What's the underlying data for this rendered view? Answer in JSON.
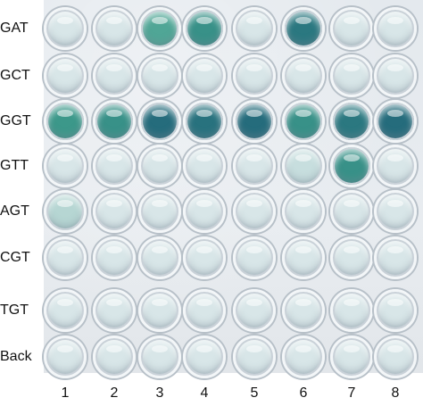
{
  "rows": [
    {
      "label": "GAT",
      "wells": [
        0.05,
        0.05,
        0.45,
        0.6,
        0.05,
        0.8,
        0.05,
        0.05
      ]
    },
    {
      "label": "GCT",
      "wells": [
        0.05,
        0.05,
        0.05,
        0.05,
        0.05,
        0.05,
        0.05,
        0.05
      ]
    },
    {
      "label": "GGT",
      "wells": [
        0.55,
        0.6,
        0.9,
        0.85,
        0.9,
        0.6,
        0.8,
        0.9
      ]
    },
    {
      "label": "GTT",
      "wells": [
        0.05,
        0.05,
        0.05,
        0.05,
        0.05,
        0.1,
        0.6,
        0.05
      ]
    },
    {
      "label": "AGT",
      "wells": [
        0.15,
        0.05,
        0.05,
        0.05,
        0.05,
        0.05,
        0.05,
        0.05
      ]
    },
    {
      "label": "CGT",
      "wells": [
        0.05,
        0.05,
        0.05,
        0.05,
        0.05,
        0.05,
        0.05,
        0.05
      ]
    },
    {
      "label": "TGT",
      "wells": [
        0.05,
        0.05,
        0.05,
        0.05,
        0.05,
        0.05,
        0.05,
        0.05
      ]
    },
    {
      "label": "Back",
      "wells": [
        0.05,
        0.05,
        0.05,
        0.05,
        0.05,
        0.05,
        0.05,
        0.05
      ]
    }
  ],
  "columns": [
    "1",
    "2",
    "3",
    "4",
    "5",
    "6",
    "7",
    "8"
  ],
  "colors": {
    "empty_well": "#e9eef2",
    "green_well": "#3f9e8c",
    "blue_well": "#1e5f78",
    "plate": "#e6ebef"
  }
}
